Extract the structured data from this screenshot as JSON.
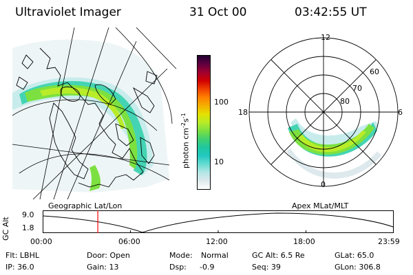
{
  "header": {
    "title": "Ultraviolet Imager",
    "date": "31 Oct 00",
    "time": "03:42:55 UT"
  },
  "colorbar": {
    "units": "photon cm",
    "units_sup1": "-2",
    "units_mid": "s",
    "units_sup2": "-1",
    "tick_high": "100",
    "tick_low": "10",
    "colors": [
      "#ffffff",
      "#dde9ec",
      "#b4e6e6",
      "#66dcd2",
      "#22c8c0",
      "#20c8a0",
      "#40d070",
      "#7ce040",
      "#b8ec28",
      "#e4e000",
      "#f4b000",
      "#ff8000",
      "#f04000",
      "#d00000",
      "#a00030",
      "#600040",
      "#200030"
    ]
  },
  "polar": {
    "lt_top": "12",
    "lt_left": "18",
    "lt_right": "6",
    "lt_bottom": "0",
    "lat_60": "60",
    "lat_70": "70",
    "lat_80": "80"
  },
  "panel_labels": {
    "left": "Geographic Lat/Lon",
    "right": "Apex MLat/MLT"
  },
  "timeline": {
    "ylabel": "GC Alt",
    "y_high": "9.0",
    "y_low": "1.8",
    "x_ticks": [
      "00:00",
      "06:00",
      "12:00",
      "18:00",
      "23:59"
    ],
    "current_fraction": 0.157
  },
  "info": {
    "row1": {
      "flt": "Flt: LBHL",
      "door": "Door: Open",
      "mode_label": "Mode:",
      "mode_value": "Normal",
      "gcalt": "GC Alt: 6.5 Re",
      "glat": "GLat:  65.0"
    },
    "row2": {
      "ip": "IP: 36.0",
      "gain": "Gain: 13",
      "dsp_label": "Dsp:",
      "dsp_value": "-0.9",
      "seq": "Seq: 39",
      "glon": "GLon: 306.8"
    }
  },
  "colors": {
    "timeline_marker": "#ff0000",
    "line": "#000000"
  }
}
